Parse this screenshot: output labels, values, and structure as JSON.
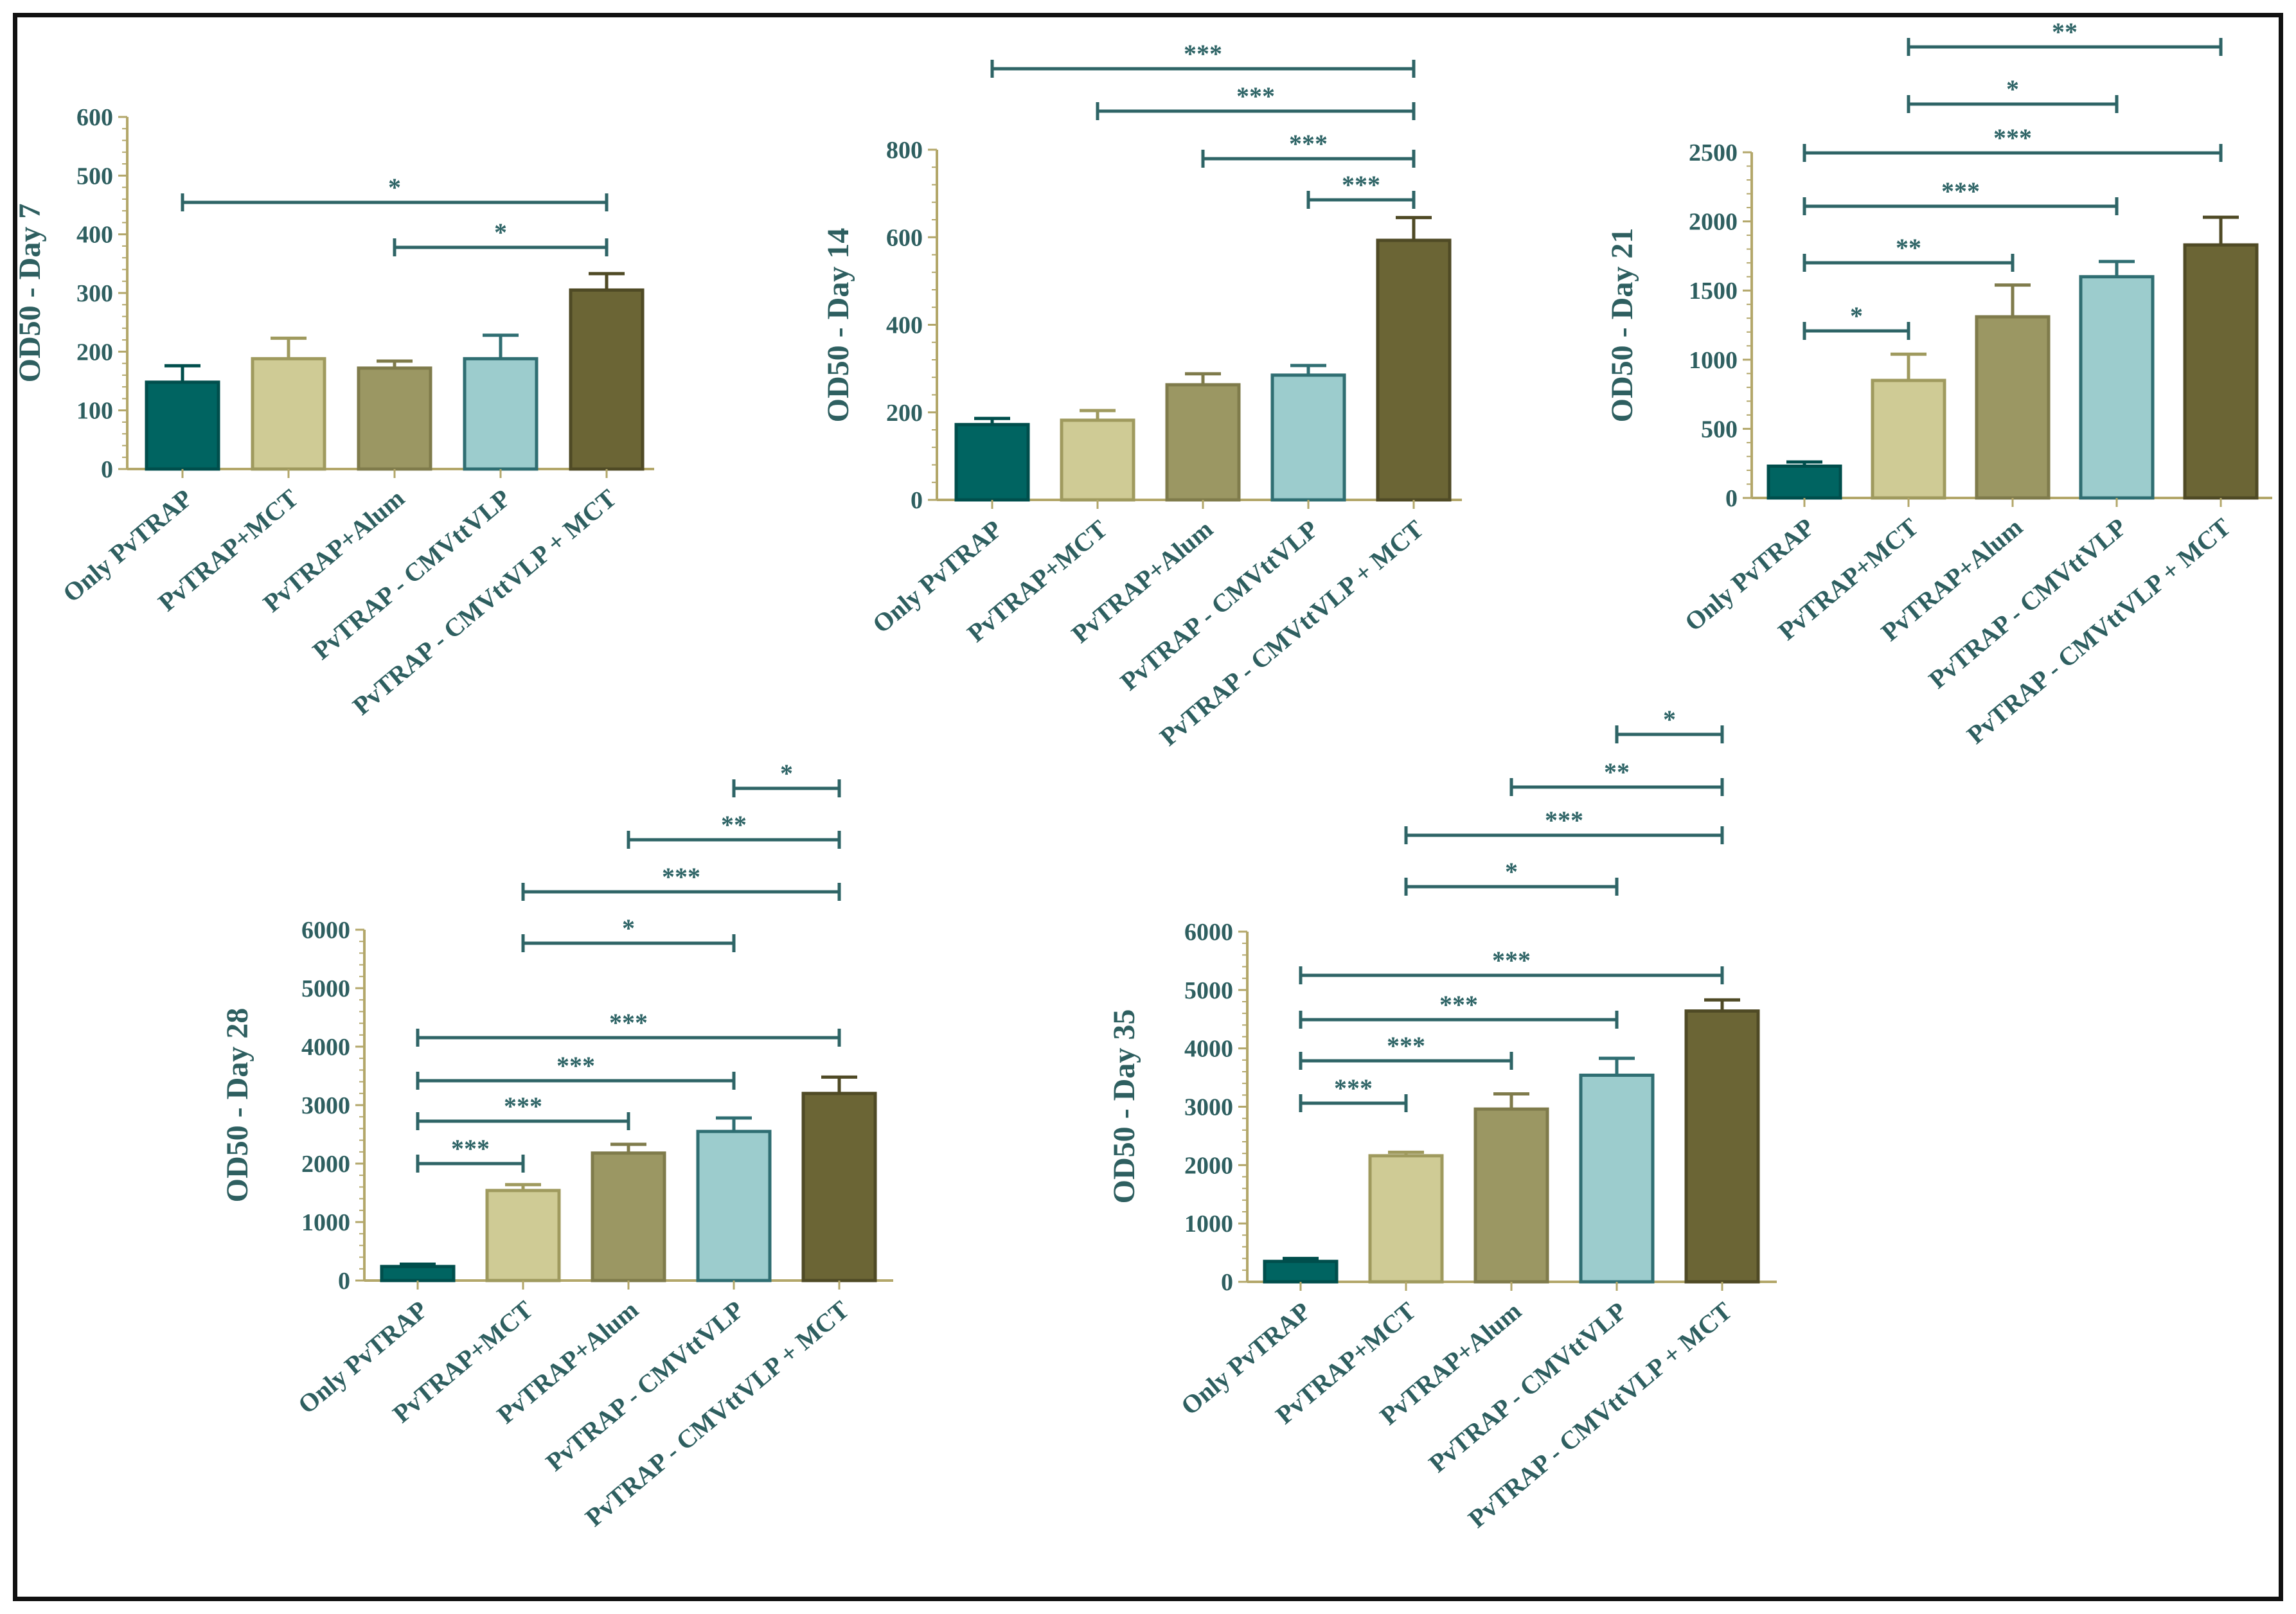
{
  "chart_data": [
    {
      "type": "bar",
      "title": "",
      "xlabel": "",
      "ylabel": "OD50  -  Day 7",
      "ylim": [
        0,
        600
      ],
      "yticks": [
        0,
        100,
        200,
        300,
        400,
        500,
        600
      ],
      "categories": [
        "Only PvTRAP",
        "PvTRAP+MCT",
        "PvTRAP+Alum",
        "PvTRAP - CMVttVLP",
        "PvTRAP - CMVttVLP + MCT"
      ],
      "values": [
        148,
        188,
        172,
        188,
        305
      ],
      "errors": [
        28,
        35,
        12,
        40,
        28
      ],
      "significance": [
        {
          "from": 0,
          "to": 4,
          "label": "*"
        },
        {
          "from": 2,
          "to": 4,
          "label": "*"
        }
      ]
    },
    {
      "type": "bar",
      "title": "",
      "xlabel": "",
      "ylabel": "OD50  -  Day 14",
      "ylim": [
        0,
        800
      ],
      "yticks": [
        0,
        200,
        400,
        600,
        800
      ],
      "categories": [
        "Only PvTRAP",
        "PvTRAP+MCT",
        "PvTRAP+Alum",
        "PvTRAP - CMVttVLP",
        "PvTRAP - CMVttVLP + MCT"
      ],
      "values": [
        172,
        182,
        263,
        285,
        593
      ],
      "errors": [
        14,
        22,
        25,
        22,
        52
      ],
      "significance": [
        {
          "from": 0,
          "to": 4,
          "label": "***"
        },
        {
          "from": 1,
          "to": 4,
          "label": "***"
        },
        {
          "from": 2,
          "to": 4,
          "label": "***"
        },
        {
          "from": 3,
          "to": 4,
          "label": "***"
        }
      ]
    },
    {
      "type": "bar",
      "title": "",
      "xlabel": "",
      "ylabel": "OD50  -  Day 21",
      "ylim": [
        0,
        2500
      ],
      "yticks": [
        0,
        500,
        1000,
        1500,
        2000,
        2500
      ],
      "categories": [
        "Only PvTRAP",
        "PvTRAP+MCT",
        "PvTRAP+Alum",
        "PvTRAP - CMVttVLP",
        "PvTRAP - CMVttVLP + MCT"
      ],
      "values": [
        230,
        850,
        1310,
        1600,
        1830
      ],
      "errors": [
        30,
        190,
        230,
        110,
        200
      ],
      "significance": [
        {
          "from": 0,
          "to": 1,
          "label": "*"
        },
        {
          "from": 0,
          "to": 2,
          "label": "**"
        },
        {
          "from": 0,
          "to": 3,
          "label": "***"
        },
        {
          "from": 0,
          "to": 4,
          "label": "***"
        },
        {
          "from": 1,
          "to": 3,
          "label": "*"
        },
        {
          "from": 1,
          "to": 4,
          "label": "**"
        }
      ]
    },
    {
      "type": "bar",
      "title": "",
      "xlabel": "",
      "ylabel": "OD50  -  Day 28",
      "ylim": [
        0,
        6000
      ],
      "yticks": [
        0,
        1000,
        2000,
        3000,
        4000,
        5000,
        6000
      ],
      "categories": [
        "Only PvTRAP",
        "PvTRAP+MCT",
        "PvTRAP+Alum",
        "PvTRAP - CMVttVLP",
        "PvTRAP - CMVttVLP + MCT"
      ],
      "values": [
        240,
        1540,
        2180,
        2550,
        3200
      ],
      "errors": [
        40,
        100,
        150,
        230,
        280
      ],
      "significance": [
        {
          "from": 0,
          "to": 1,
          "label": "***"
        },
        {
          "from": 0,
          "to": 2,
          "label": "***"
        },
        {
          "from": 0,
          "to": 3,
          "label": "***"
        },
        {
          "from": 0,
          "to": 4,
          "label": "***"
        },
        {
          "from": 1,
          "to": 3,
          "label": "*"
        },
        {
          "from": 1,
          "to": 4,
          "label": "***"
        },
        {
          "from": 2,
          "to": 4,
          "label": "**"
        },
        {
          "from": 3,
          "to": 4,
          "label": "*"
        }
      ]
    },
    {
      "type": "bar",
      "title": "",
      "xlabel": "",
      "ylabel": "OD50  -  Day 35",
      "ylim": [
        0,
        6000
      ],
      "yticks": [
        0,
        1000,
        2000,
        3000,
        4000,
        5000,
        6000
      ],
      "categories": [
        "Only PvTRAP",
        "PvTRAP+MCT",
        "PvTRAP+Alum",
        "PvTRAP - CMVttVLP",
        "PvTRAP - CMVttVLP + MCT"
      ],
      "values": [
        350,
        2160,
        2960,
        3540,
        4640
      ],
      "errors": [
        50,
        60,
        260,
        290,
        190
      ],
      "significance": [
        {
          "from": 0,
          "to": 1,
          "label": "***"
        },
        {
          "from": 0,
          "to": 2,
          "label": "***"
        },
        {
          "from": 0,
          "to": 3,
          "label": "***"
        },
        {
          "from": 0,
          "to": 4,
          "label": "***"
        },
        {
          "from": 1,
          "to": 3,
          "label": "*"
        },
        {
          "from": 1,
          "to": 4,
          "label": "***"
        },
        {
          "from": 2,
          "to": 4,
          "label": "**"
        },
        {
          "from": 3,
          "to": 4,
          "label": "*"
        }
      ]
    }
  ],
  "series_colors": [
    "#006461",
    "#cfcb95",
    "#9b9763",
    "#9ccccd",
    "#6b6535"
  ],
  "series_edge_colors": [
    "#004e4c",
    "#9f9a5e",
    "#7f7b4b",
    "#2f6e72",
    "#4f4a25"
  ]
}
